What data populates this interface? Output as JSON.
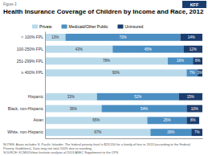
{
  "chart_data": {
    "type": "bar",
    "orientation": "horizontal",
    "stacked": true,
    "title": "Health Insurance Coverage of Children by Income and Race, 2012",
    "annotations": [
      "Figure 3",
      "NOTES: Asian includes S. Pacific Islander.  The federal poverty level is $23,550 for a family of four in 2013 (according to the Federal\nPoverty Guidelines). Data may not total 100% due to rounding.\nSOURCE: KCMU/Urban Institute analysis of 2013 ASEC Supplement to the CPS.",
      "KFF"
    ],
    "categories": [
      "< 100% FPL",
      "100-250% FPL",
      "251-299% FPL",
      "≥ 400% FPL",
      null,
      "Hispanic",
      "Black, non-Hispanic",
      "Asian",
      "White, non-Hispanic"
    ],
    "series": [
      {
        "name": "Private",
        "color": "#b8d9ea",
        "values": [
          13,
          43,
          78,
          90,
          null,
          33,
          36,
          65,
          67
        ],
        "value_labels": [
          "13%",
          "43%",
          "78%",
          "90%",
          null,
          "33%",
          "36%",
          "65%",
          "67%"
        ]
      },
      {
        "name": "Medicaid/Other Public",
        "color": "#4a8ec2",
        "values": [
          73,
          45,
          16,
          7,
          null,
          52,
          54,
          25,
          26
        ],
        "value_labels": [
          "73%",
          "45%",
          "16%",
          "7%",
          null,
          "52%",
          "54%",
          "25%",
          "26%"
        ]
      },
      {
        "name": "Uninsured",
        "color": "#1b3d6e",
        "values": [
          14,
          12,
          6,
          3,
          null,
          15,
          10,
          8,
          7
        ],
        "value_labels": [
          "14%",
          "12%",
          "6%",
          "3%",
          null,
          "15%",
          "10%",
          "8%",
          "7%"
        ]
      }
    ],
    "xlim": [
      0,
      100
    ],
    "data_labels": true,
    "tick_labels": "y",
    "legend": "top"
  }
}
